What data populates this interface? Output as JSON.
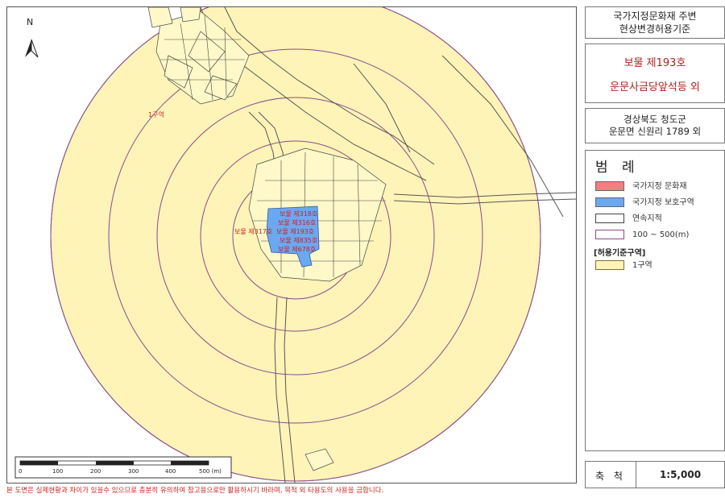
{
  "map": {
    "north_label": "N",
    "zone_label": "1구역",
    "heritage_labels": [
      "보물 제318호",
      "보물 제316호",
      "보물 제317호",
      "보물 제193호",
      "보물 제835호",
      "보물 제678호"
    ],
    "scale_bar_ticks": [
      "0",
      "100",
      "200",
      "300",
      "400",
      "500 (m)"
    ]
  },
  "side_panel": {
    "title_line1": "국가지정문화재 주변",
    "title_line2": "현상변경허용기준",
    "heritage_line1": "보물 제193호",
    "heritage_line2": "운문사금당앞석등 외",
    "location_line1": "경상북도 청도군",
    "location_line2": "운문면 신원리 1789 외"
  },
  "legend": {
    "title": "범 례",
    "items": [
      {
        "label": "국가지정 문화재",
        "color": "#f08080"
      },
      {
        "label": "국가지정 보호구역",
        "color": "#6aa9f0"
      },
      {
        "label": "연속지적",
        "color": "#ffffff"
      },
      {
        "label": "100 ~ 500(m)",
        "color": "#ffffff"
      }
    ],
    "subtitle": "[허용기준구역]",
    "zone_item": {
      "label": "1구역",
      "color": "#fff4b8"
    }
  },
  "scale": {
    "label": "축 척",
    "value": "1:5,000"
  },
  "disclaimer": "본 도면은 실제현황과 차이가 있을수 있으므로 충분히 유의하여 참고용으로만 활용하시기 바라며, 목적 외 타용도의 사용을 금합니다.",
  "colors": {
    "zone": "#fff4b8",
    "protect": "#6aa9f0",
    "heritage_text": "#d02020",
    "ring": "#8a4a8a"
  }
}
